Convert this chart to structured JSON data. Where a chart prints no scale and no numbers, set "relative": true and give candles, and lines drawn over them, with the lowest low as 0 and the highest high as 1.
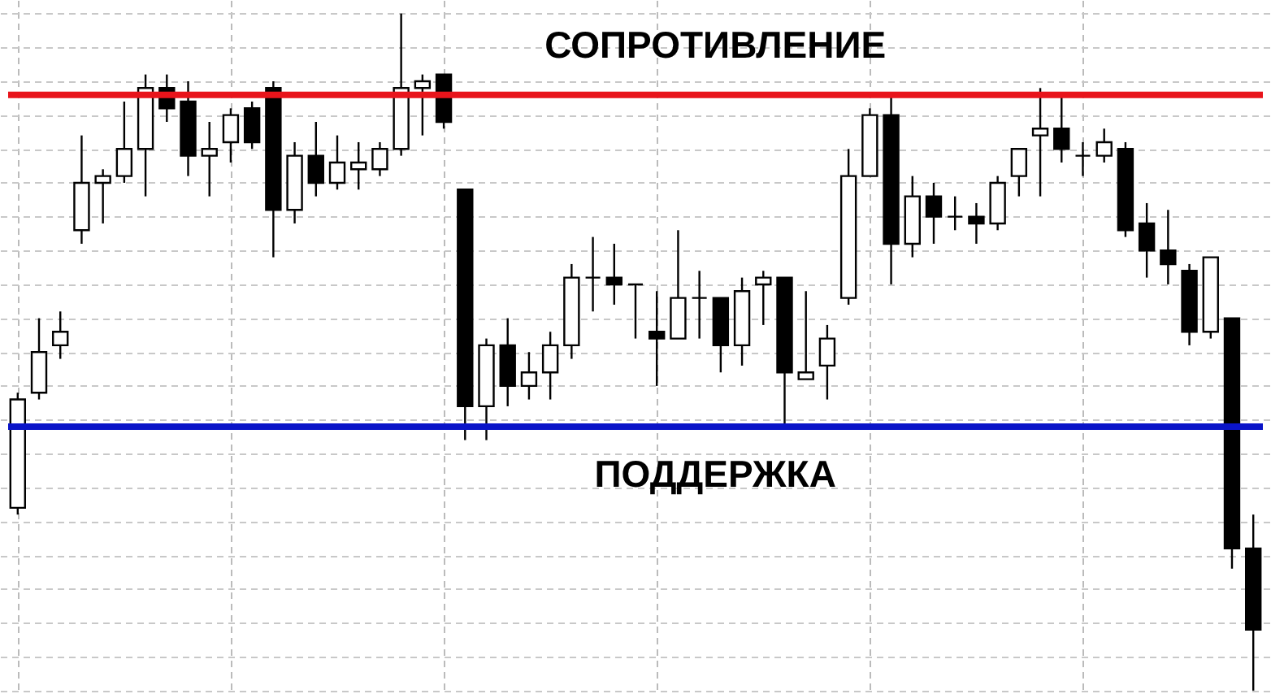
{
  "chart_data": {
    "type": "candlestick",
    "relative": true,
    "grid": true,
    "categories": [
      null,
      null,
      null,
      null,
      null,
      null,
      null,
      null,
      null,
      null,
      null,
      null,
      null,
      null,
      null,
      null,
      null,
      null,
      null,
      null,
      null,
      null,
      null,
      null,
      null,
      null,
      null,
      null,
      null,
      null,
      null,
      null,
      null,
      null,
      null,
      null,
      null,
      null,
      null,
      null,
      null,
      null,
      null,
      null,
      null,
      null,
      null,
      null,
      null,
      null,
      null,
      null,
      null,
      null,
      null,
      null,
      null,
      null,
      null
    ],
    "ohlc": [
      [
        0.27,
        0.44,
        0.26,
        0.43
      ],
      [
        0.44,
        0.55,
        0.43,
        0.5
      ],
      [
        0.51,
        0.56,
        0.49,
        0.53
      ],
      [
        0.68,
        0.82,
        0.66,
        0.75
      ],
      [
        0.75,
        0.77,
        0.69,
        0.76
      ],
      [
        0.76,
        0.87,
        0.75,
        0.8
      ],
      [
        0.8,
        0.91,
        0.73,
        0.89
      ],
      [
        0.89,
        0.91,
        0.84,
        0.86
      ],
      [
        0.87,
        0.9,
        0.76,
        0.79
      ],
      [
        0.79,
        0.84,
        0.73,
        0.8
      ],
      [
        0.81,
        0.86,
        0.78,
        0.85
      ],
      [
        0.86,
        0.87,
        0.8,
        0.81
      ],
      [
        0.89,
        0.9,
        0.64,
        0.71
      ],
      [
        0.71,
        0.81,
        0.69,
        0.79
      ],
      [
        0.79,
        0.84,
        0.73,
        0.75
      ],
      [
        0.75,
        0.82,
        0.74,
        0.78
      ],
      [
        0.77,
        0.81,
        0.74,
        0.78
      ],
      [
        0.77,
        0.81,
        0.76,
        0.8
      ],
      [
        0.8,
        1.0,
        0.79,
        0.89
      ],
      [
        0.89,
        0.91,
        0.82,
        0.9
      ],
      [
        0.91,
        0.91,
        0.83,
        0.84
      ],
      [
        0.74,
        0.74,
        0.37,
        0.42
      ],
      [
        0.42,
        0.52,
        0.37,
        0.51
      ],
      [
        0.51,
        0.55,
        0.42,
        0.45
      ],
      [
        0.45,
        0.5,
        0.43,
        0.47
      ],
      [
        0.47,
        0.53,
        0.43,
        0.51
      ],
      [
        0.51,
        0.63,
        0.49,
        0.61
      ],
      [
        0.61,
        0.67,
        0.56,
        0.61
      ],
      [
        0.61,
        0.66,
        0.57,
        0.6
      ],
      [
        0.6,
        0.6,
        0.52,
        0.6
      ],
      [
        0.53,
        0.59,
        0.45,
        0.52
      ],
      [
        0.52,
        0.68,
        0.52,
        0.58
      ],
      [
        0.58,
        0.62,
        0.52,
        0.58
      ],
      [
        0.58,
        0.58,
        0.47,
        0.51
      ],
      [
        0.51,
        0.61,
        0.48,
        0.59
      ],
      [
        0.6,
        0.62,
        0.54,
        0.61
      ],
      [
        0.61,
        0.61,
        0.39,
        0.47
      ],
      [
        0.46,
        0.59,
        0.46,
        0.47
      ],
      [
        0.48,
        0.54,
        0.43,
        0.52
      ],
      [
        0.58,
        0.8,
        0.57,
        0.76
      ],
      [
        0.76,
        0.86,
        0.76,
        0.85
      ],
      [
        0.85,
        0.88,
        0.6,
        0.66
      ],
      [
        0.66,
        0.76,
        0.64,
        0.73
      ],
      [
        0.73,
        0.75,
        0.66,
        0.7
      ],
      [
        0.7,
        0.73,
        0.68,
        0.7
      ],
      [
        0.7,
        0.72,
        0.66,
        0.69
      ],
      [
        0.69,
        0.76,
        0.68,
        0.75
      ],
      [
        0.76,
        0.8,
        0.73,
        0.8
      ],
      [
        0.82,
        0.89,
        0.73,
        0.83
      ],
      [
        0.83,
        0.88,
        0.78,
        0.8
      ],
      [
        0.79,
        0.81,
        0.76,
        0.79
      ],
      [
        0.79,
        0.83,
        0.78,
        0.81
      ],
      [
        0.8,
        0.81,
        0.67,
        0.68
      ],
      [
        0.69,
        0.72,
        0.61,
        0.65
      ],
      [
        0.65,
        0.71,
        0.6,
        0.63
      ],
      [
        0.62,
        0.63,
        0.51,
        0.53
      ],
      [
        0.53,
        0.64,
        0.52,
        0.64
      ],
      [
        0.55,
        0.55,
        0.18,
        0.21
      ],
      [
        0.21,
        0.26,
        0.0,
        0.09
      ]
    ],
    "ref_lines": [
      {
        "axis": "y",
        "value": 0.88,
        "label": "СОПРОТИВЛЕНИЕ",
        "color": "#e8141b"
      },
      {
        "axis": "y",
        "value": 0.39,
        "label": "ПОДДЕРЖКА",
        "color": "#0a14c8"
      }
    ]
  }
}
